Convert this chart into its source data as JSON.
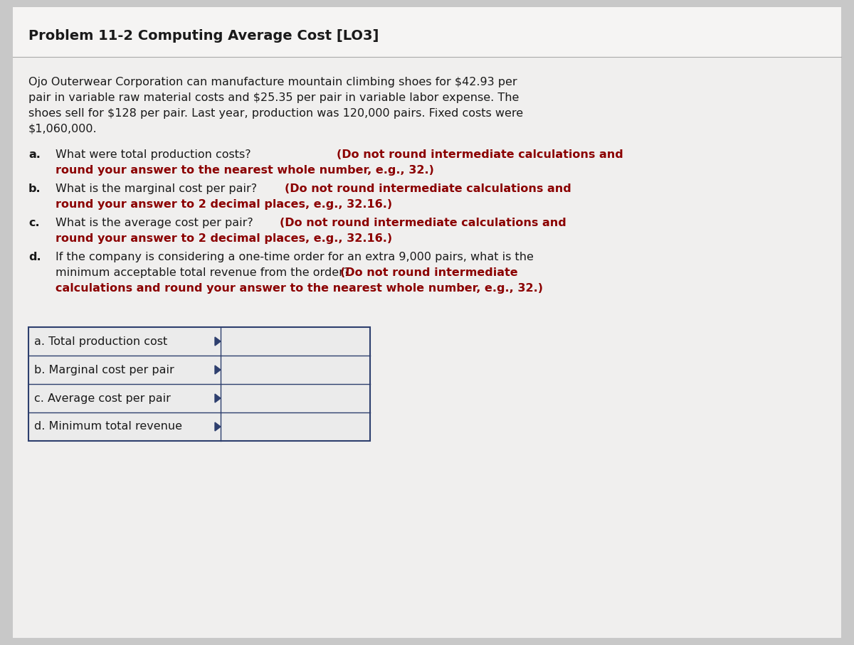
{
  "title": "Problem 11-2 Computing Average Cost [LO3]",
  "title_fontsize": 14,
  "bg_color": "#c8c8c8",
  "page_color": "#f0efee",
  "para_lines": [
    "Ojo Outerwear Corporation can manufacture mountain climbing shoes for $42.93 per",
    "pair in variable raw material costs and $25.35 per pair in variable labor expense. The",
    "shoes sell for $128 per pair. Last year, production was 120,000 pairs. Fixed costs were",
    "$1,060,000."
  ],
  "q_a_line1_normal": "What were total production costs? ",
  "q_a_line1_bold": "(Do not round intermediate calculations and",
  "q_a_line2_bold": "round your answer to the nearest whole number, e.g., 32.)",
  "q_b_line1_normal": "What is the marginal cost per pair? ",
  "q_b_line1_bold": "(Do not round intermediate calculations and",
  "q_b_line2_bold": "round your answer to 2 decimal places, e.g., 32.16.)",
  "q_c_line1_normal": "What is the average cost per pair? ",
  "q_c_line1_bold": "(Do not round intermediate calculations and",
  "q_c_line2_bold": "round your answer to 2 decimal places, e.g., 32.16.)",
  "q_d_line1_normal": "If the company is considering a one-time order for an extra 9,000 pairs, what is the",
  "q_d_line2_normal": "minimum acceptable total revenue from the order? ",
  "q_d_line2_bold": "(Do not round intermediate",
  "q_d_line3_bold": "calculations and round your answer to the nearest whole number, e.g., 32.)",
  "table_rows": [
    "a. Total production cost",
    "b. Marginal cost per pair",
    "c. Average cost per pair",
    "d. Minimum total revenue"
  ],
  "normal_color": "#1a1a1a",
  "bold_color": "#8b0000",
  "table_border_color": "#2e3f6e",
  "font_size": 11.5,
  "label_fontsize": 11.5,
  "title_color": "#1a1a1a"
}
